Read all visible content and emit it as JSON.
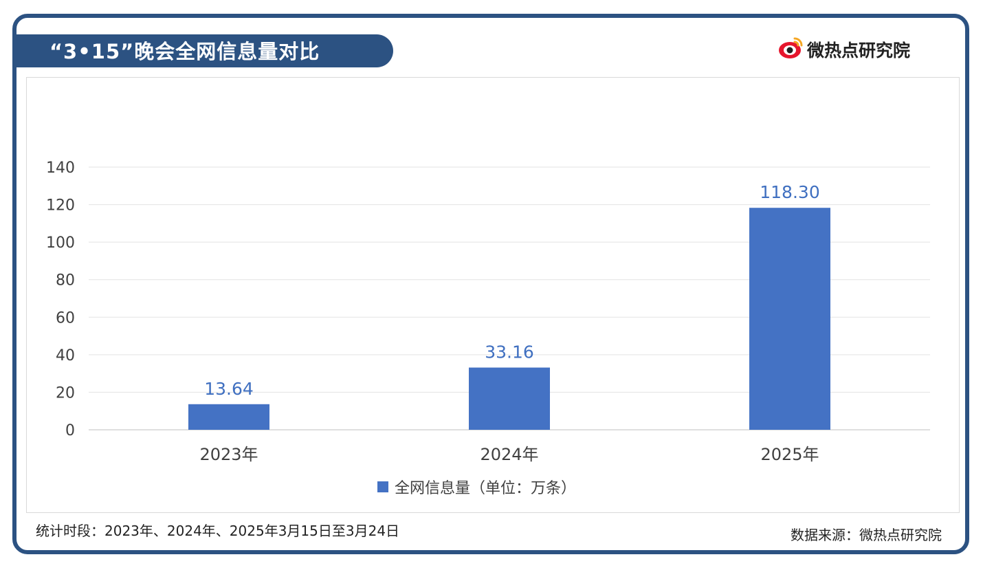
{
  "header": {
    "title": "“3•15”晚会全网信息量对比",
    "brand_name": "微热点研究院",
    "brand_icon": "weibo-eye-icon"
  },
  "footer": {
    "period": "统计时段：2023年、2024年、2025年3月15日至3月24日",
    "source": "数据来源：微热点研究院"
  },
  "colors": {
    "bar": "#4472c4",
    "label": "#3f6fc0",
    "frame": "#2c5282",
    "brand_red": "#e6162d",
    "brand_orange": "#f5a623"
  },
  "chart_data": {
    "type": "bar",
    "categories": [
      "2023年",
      "2024年",
      "2025年"
    ],
    "series": [
      {
        "name": "全网信息量（单位：万条）",
        "values": [
          13.64,
          33.16,
          118.3
        ]
      }
    ],
    "data_labels": [
      "13.64",
      "33.16",
      "118.30"
    ],
    "ylim": [
      0,
      140
    ],
    "yticks": [
      "0",
      "20",
      "40",
      "60",
      "80",
      "100",
      "120",
      "140"
    ],
    "grid": true,
    "legend": "bottom"
  }
}
